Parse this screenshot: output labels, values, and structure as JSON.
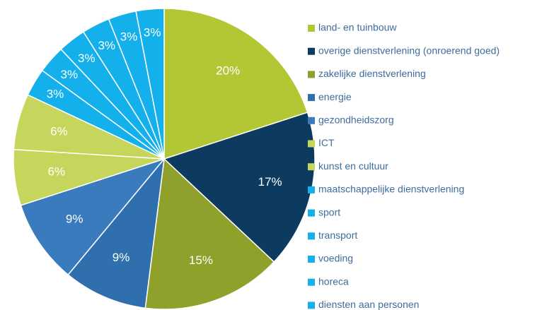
{
  "chart_data": {
    "type": "pie",
    "categories": [
      "land- en tuinbouw",
      "overige dienstverlening (onroerend goed)",
      "zakelijke dienstverlening",
      "energie",
      "gezondheidszorg",
      "ICT",
      "kunst en cultuur",
      "maatschappelijke dienstverlening",
      "sport",
      "transport",
      "voeding",
      "horeca",
      "diensten aan personen"
    ],
    "values": [
      20,
      17,
      15,
      9,
      9,
      6,
      6,
      3,
      3,
      3,
      3,
      3,
      3
    ],
    "value_labels": [
      "20%",
      "17%",
      "15%",
      "9%",
      "9%",
      "6%",
      "6%",
      "3%",
      "3%",
      "3%",
      "3%",
      "3%",
      "3%"
    ],
    "colors": [
      "#b3c735",
      "#0d3a5f",
      "#8fa12a",
      "#2f6fae",
      "#3a7bbd",
      "#c6d65c",
      "#c6d65c",
      "#13b0ec",
      "#13b0ec",
      "#13b0ec",
      "#13b0ec",
      "#13b0ec",
      "#13b0ec"
    ],
    "legend": "right"
  }
}
